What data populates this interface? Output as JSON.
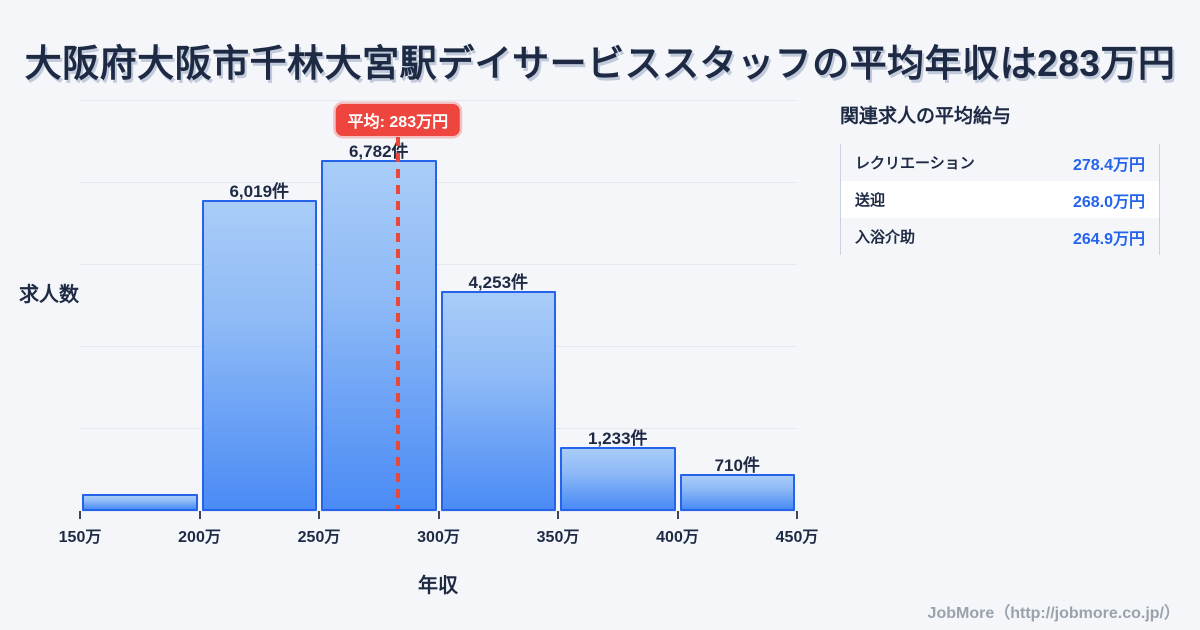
{
  "title": "大阪府大阪市千林大宮駅デイサービススタッフの平均年収は283万円",
  "chart_data": {
    "type": "bar",
    "subtype": "histogram",
    "xlabel": "年収",
    "ylabel": "求人数",
    "xlim": [
      150,
      450
    ],
    "ylim": [
      0,
      7950
    ],
    "grid": "horizontal",
    "grid_intervals": 5,
    "x_tick_values": [
      150,
      200,
      250,
      300,
      350,
      400,
      450
    ],
    "x_tick_labels": [
      "150万",
      "200万",
      "250万",
      "300万",
      "350万",
      "400万",
      "450万"
    ],
    "bins": [
      {
        "range": "150万-200万",
        "value": 330,
        "label": ""
      },
      {
        "range": "200万-250万",
        "value": 6019,
        "label": "6,019件"
      },
      {
        "range": "250万-300万",
        "value": 6782,
        "label": "6,782件"
      },
      {
        "range": "300万-350万",
        "value": 4253,
        "label": "4,253件"
      },
      {
        "range": "350万-400万",
        "value": 1233,
        "label": "1,233件"
      },
      {
        "range": "400万-450万",
        "value": 710,
        "label": "710件"
      }
    ],
    "mean": {
      "value": 283,
      "label": "平均: 283万円"
    }
  },
  "side_panel": {
    "heading": "関連求人の平均給与",
    "rows": [
      {
        "label": "レクリエーション",
        "value": "278.4万円"
      },
      {
        "label": "送迎",
        "value": "268.0万円"
      },
      {
        "label": "入浴介助",
        "value": "264.9万円"
      }
    ]
  },
  "footer": {
    "credit": "JobMore（http://jobmore.co.jp/）"
  },
  "colors": {
    "background": "#f4f6fa",
    "text_navy": "#1e2a44",
    "bar_border": "#2563eb",
    "bar_gradient_top": "#a9cdf8",
    "bar_gradient_bottom": "#4a8bf5",
    "gridline": "#e3e8f1",
    "mean_red": "#ee453f",
    "value_blue": "#2563eb",
    "footer_gray": "#9aa2ac"
  }
}
